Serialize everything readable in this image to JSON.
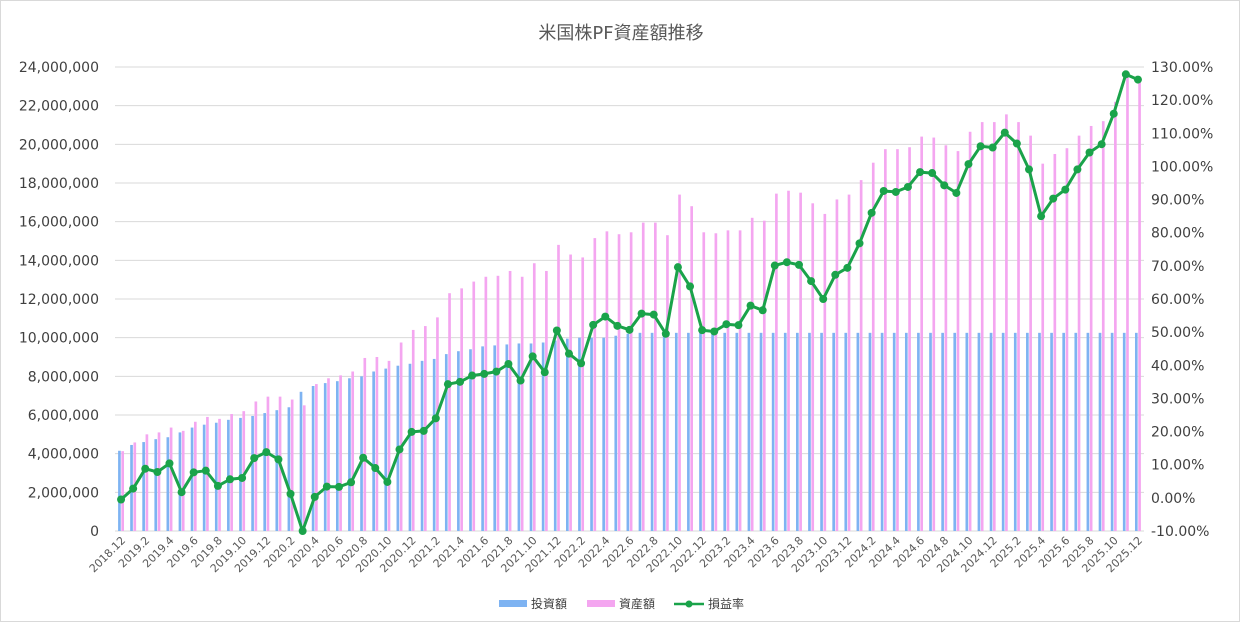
{
  "chart_data": {
    "type": "bar+line",
    "title": "米国株PF資産額推移",
    "legend_position": "bottom",
    "grid": true,
    "y_left": {
      "min": 0,
      "max": 24000000,
      "tick_labels": [
        "0",
        "2,000,000",
        "4,000,000",
        "6,000,000",
        "8,000,000",
        "10,000,000",
        "12,000,000",
        "14,000,000",
        "16,000,000",
        "18,000,000",
        "20,000,000",
        "22,000,000",
        "24,000,000"
      ]
    },
    "y_right": {
      "min": -10,
      "max": 130,
      "tick_labels": [
        "-10.00%",
        "0.00%",
        "10.00%",
        "20.00%",
        "30.00%",
        "40.00%",
        "50.00%",
        "60.00%",
        "70.00%",
        "80.00%",
        "90.00%",
        "100.00%",
        "110.00%",
        "120.00%",
        "130.00%"
      ]
    },
    "x_tick_labels": [
      "2018.12",
      "2019.2",
      "2019.4",
      "2019.6",
      "2019.8",
      "2019.10",
      "2019.12",
      "2020.2",
      "2020.4",
      "2020.6",
      "2020.8",
      "2020.10",
      "2020.12",
      "2021.2",
      "2021.4",
      "2021.6",
      "2021.8",
      "2021.10",
      "2021.12",
      "2022.2",
      "2022.4",
      "2022.6",
      "2022.8",
      "2022.10",
      "2022.12",
      "2023.2",
      "2023.4",
      "2023.6",
      "2023.8",
      "2023.10",
      "2023.12",
      "2024.2",
      "2024.4",
      "2024.6",
      "2024.8",
      "2024.10",
      "2024.12",
      "2025.2",
      "2025.4",
      "2025.6",
      "2025.8",
      "2025.10",
      "2025.12"
    ],
    "series": [
      {
        "name": "投資額",
        "type": "bar",
        "axis": "left",
        "color": "#7eb3f2",
        "values": [
          4150000,
          4450000,
          4600000,
          4750000,
          4850000,
          5100000,
          5350000,
          5500000,
          5600000,
          5750000,
          5850000,
          5950000,
          6100000,
          6250000,
          6400000,
          7200000,
          7500000,
          7650000,
          7750000,
          7900000,
          8000000,
          8250000,
          8400000,
          8550000,
          8650000,
          8800000,
          8900000,
          9150000,
          9300000,
          9400000,
          9550000,
          9600000,
          9650000,
          9700000,
          9700000,
          9750000,
          9850000,
          9950000,
          10000000,
          10000000,
          10000000,
          10100000,
          10200000,
          10250000,
          10250000,
          10250000,
          10250000,
          10250000,
          10250000,
          10250000,
          10250000,
          10250000,
          10250000,
          10250000,
          10250000,
          10250000,
          10250000,
          10250000,
          10250000,
          10250000,
          10250000,
          10250000,
          10250000,
          10250000,
          10250000,
          10250000,
          10250000,
          10250000,
          10250000,
          10250000,
          10250000,
          10250000,
          10250000,
          10250000,
          10250000,
          10250000,
          10250000,
          10250000,
          10250000,
          10250000,
          10250000,
          10250000,
          10250000,
          10250000,
          10250000
        ]
      },
      {
        "name": "資産額",
        "type": "bar",
        "axis": "left",
        "color": "#f4a6f0",
        "values": [
          4130000,
          4580000,
          5000000,
          5100000,
          5350000,
          5180000,
          5650000,
          5900000,
          5800000,
          6050000,
          6200000,
          6700000,
          6950000,
          6950000,
          6800000,
          6500000,
          7600000,
          7900000,
          8050000,
          8250000,
          8950000,
          9000000,
          8800000,
          9750000,
          10400000,
          10600000,
          11050000,
          12300000,
          12550000,
          12900000,
          13150000,
          13200000,
          13450000,
          13150000,
          13850000,
          13450000,
          14800000,
          14300000,
          14150000,
          15150000,
          15500000,
          15350000,
          15450000,
          15950000,
          15950000,
          15300000,
          17400000,
          16800000,
          15450000,
          15400000,
          15550000,
          15550000,
          16200000,
          16050000,
          17450000,
          17600000,
          17500000,
          16950000,
          16400000,
          17150000,
          17400000,
          18150000,
          19050000,
          19750000,
          19750000,
          19850000,
          20400000,
          20350000,
          19950000,
          19650000,
          20650000,
          21150000,
          21150000,
          21550000,
          21150000,
          20450000,
          19000000,
          19500000,
          19800000,
          20450000,
          20950000,
          21200000,
          22200000,
          23750000,
          23450000
        ]
      },
      {
        "name": "損益率",
        "type": "line",
        "axis": "right",
        "color": "#1aa34a",
        "values": [
          -0.5,
          2.8,
          8.8,
          7.8,
          10.4,
          1.7,
          7.7,
          8.2,
          3.6,
          5.6,
          6.0,
          12.0,
          13.8,
          11.6,
          1.2,
          -10.0,
          0.3,
          3.4,
          3.3,
          4.7,
          12.1,
          9.0,
          4.8,
          14.6,
          19.9,
          20.2,
          24.0,
          34.3,
          35.0,
          36.9,
          37.4,
          38.1,
          40.4,
          35.4,
          42.7,
          37.9,
          50.5,
          43.5,
          40.6,
          52.2,
          54.7,
          51.9,
          50.7,
          55.6,
          55.3,
          49.5,
          69.6,
          63.8,
          50.6,
          50.2,
          52.4,
          52.1,
          58.0,
          56.6,
          70.1,
          71.1,
          70.3,
          65.4,
          60.0,
          67.3,
          69.4,
          76.8,
          86.0,
          92.6,
          92.3,
          93.8,
          98.3,
          98.0,
          94.3,
          92.0,
          100.7,
          106.1,
          105.7,
          110.2,
          106.9,
          99.1,
          85.0,
          90.3,
          93.0,
          99.1,
          104.2,
          106.7,
          115.9,
          127.8,
          126.2
        ]
      }
    ]
  }
}
